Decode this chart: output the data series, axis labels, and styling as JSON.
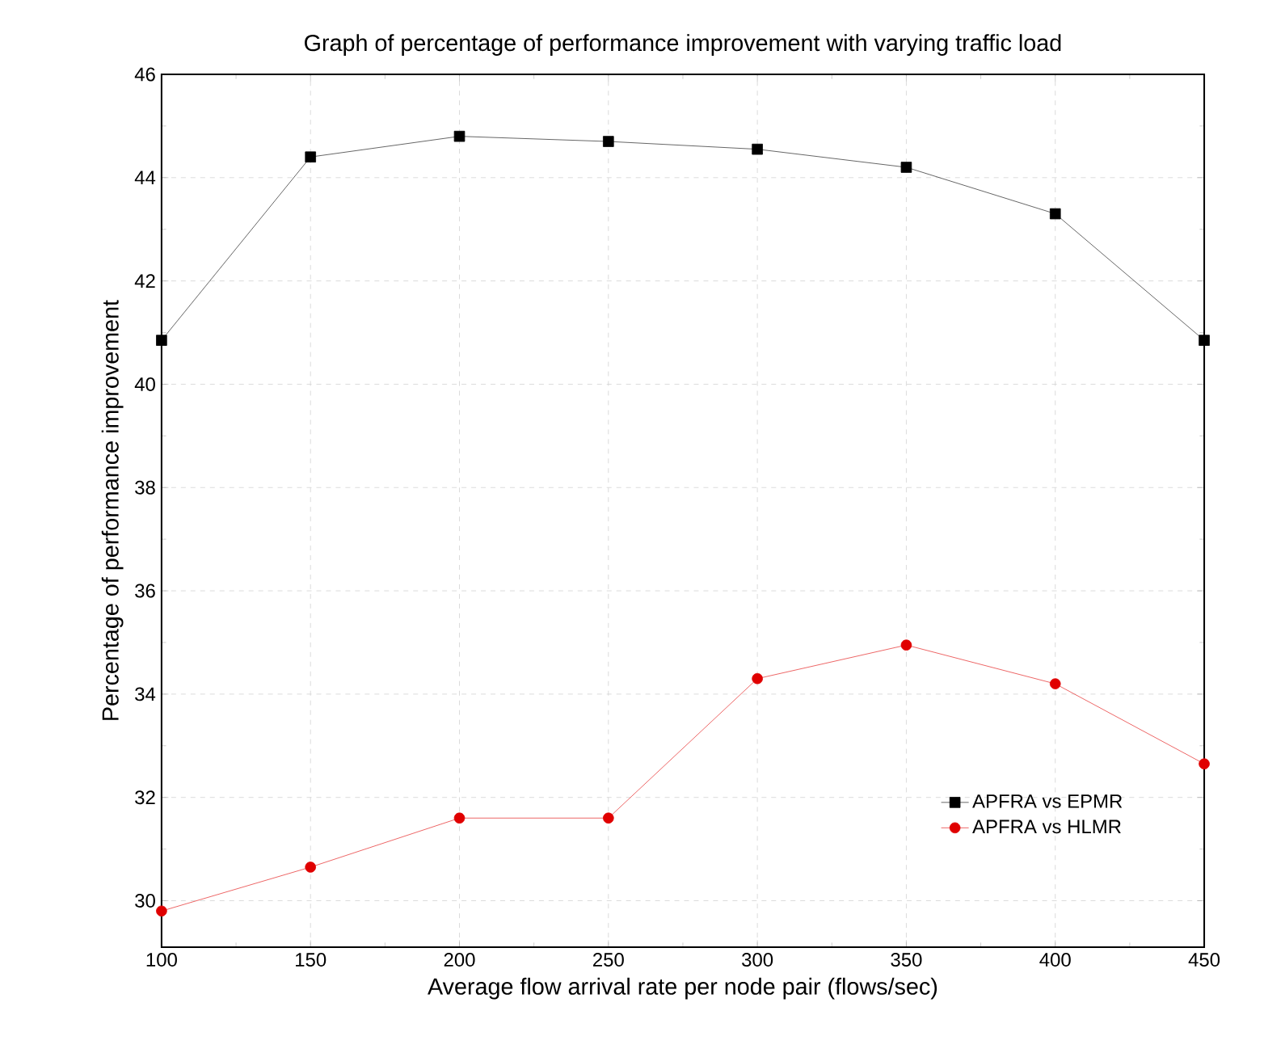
{
  "chart_data": {
    "type": "line",
    "title": "Graph of percentage of performance improvement with varying traffic load",
    "xlabel": "Average flow arrival rate per node pair (flows/sec)",
    "ylabel": "Percentage of performance improvement",
    "x": [
      100,
      150,
      200,
      250,
      300,
      350,
      400,
      450
    ],
    "series": [
      {
        "name": "APFRA vs EPMR",
        "color": "#000000",
        "marker": "square",
        "values": [
          40.85,
          44.4,
          44.8,
          44.7,
          44.55,
          44.2,
          43.3,
          40.85
        ]
      },
      {
        "name": "APFRA vs HLMR",
        "color": "#e00000",
        "marker": "circle",
        "values": [
          29.8,
          30.65,
          31.6,
          31.6,
          34.3,
          34.95,
          34.2,
          32.65
        ]
      }
    ],
    "xlim": [
      100,
      450
    ],
    "xticks": [
      100,
      150,
      200,
      250,
      300,
      350,
      400,
      450
    ],
    "ylim": [
      29.1,
      46
    ],
    "yticks": [
      30,
      32,
      34,
      36,
      38,
      40,
      42,
      44,
      46
    ],
    "grid": true,
    "legend": "bottom right",
    "line_style": "solid"
  }
}
